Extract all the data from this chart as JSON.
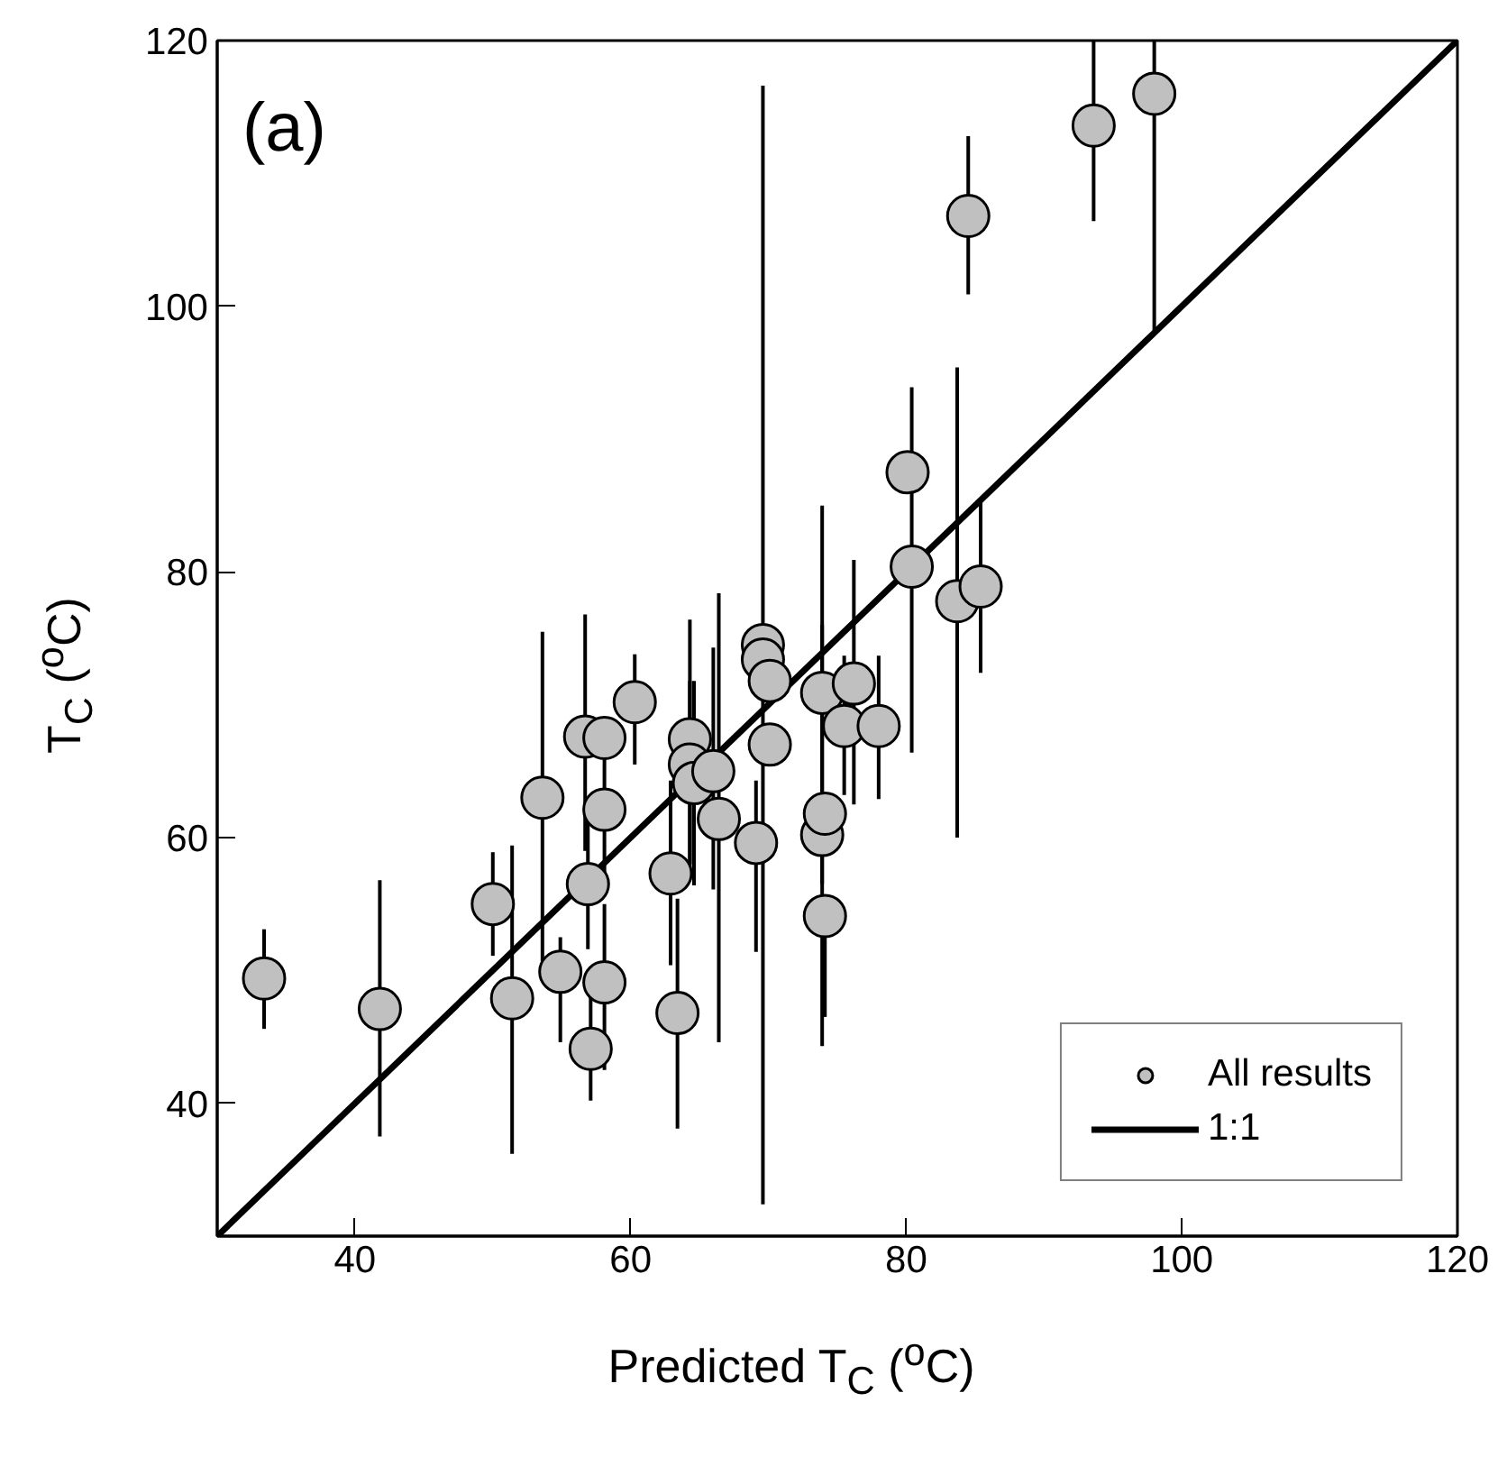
{
  "chart_data": {
    "type": "scatter",
    "xlabel": "Predicted T$_{C}$ ($^{o}$C)",
    "ylabel": "T$_{C}$ ($^{o}$C)",
    "annotations": [
      "(a)"
    ],
    "xlim": [
      30,
      120
    ],
    "ylim": [
      30,
      120
    ],
    "xticks": [
      40,
      60,
      80,
      100,
      120
    ],
    "yticks": [
      40,
      60,
      80,
      100,
      120
    ],
    "grid": false,
    "legend": "bottom right",
    "series": [
      {
        "name": "All results",
        "marker": "circle",
        "color": "#c0c0c0",
        "x": [
          33.4,
          41.8,
          50.0,
          51.4,
          53.6,
          54.9,
          56.9,
          56.7,
          57.1,
          58.1,
          58.1,
          58.1,
          60.3,
          62.9,
          63.4,
          64.3,
          64.3,
          64.6,
          66.0,
          66.4,
          69.1,
          69.6,
          69.6,
          70.1,
          70.1,
          73.9,
          73.9,
          74.1,
          74.1,
          75.5,
          76.2,
          78.0,
          80.1,
          80.4,
          83.7,
          85.4,
          84.5,
          93.6,
          98.0
        ],
        "values": [
          49.4,
          47.1,
          55.0,
          47.9,
          63.0,
          49.9,
          56.5,
          67.6,
          44.1,
          67.5,
          62.1,
          49.1,
          70.2,
          57.3,
          46.8,
          67.4,
          65.5,
          64.1,
          65.0,
          61.4,
          59.6,
          74.5,
          73.4,
          71.8,
          67.0,
          70.9,
          60.2,
          61.8,
          54.1,
          68.4,
          71.6,
          68.4,
          87.5,
          80.4,
          77.8,
          78.9,
          106.8,
          113.6,
          116.0
        ],
        "errors": [
          [
            45.6,
            53.1
          ],
          [
            37.5,
            56.8
          ],
          [
            51.1,
            58.9
          ],
          [
            36.2,
            59.4
          ],
          [
            50.7,
            75.5
          ],
          [
            44.6,
            52.5
          ],
          [
            51.6,
            61.6
          ],
          [
            59.0,
            76.8
          ],
          [
            40.2,
            48.1
          ],
          null,
          [
            57.0,
            66.0
          ],
          [
            42.5,
            55.0
          ],
          [
            65.5,
            73.8
          ],
          [
            50.4,
            64.3
          ],
          [
            38.1,
            55.4
          ],
          [
            56.8,
            76.4
          ],
          [
            58.0,
            71.8
          ],
          [
            56.4,
            71.8
          ],
          [
            56.1,
            74.3
          ],
          [
            44.6,
            78.4
          ],
          [
            51.4,
            64.3
          ],
          [
            32.4,
            116.6
          ],
          null,
          null,
          null,
          [
            44.3,
            85.0
          ],
          [
            56.5,
            76.0
          ],
          null,
          [
            46.5,
            54.1
          ],
          [
            63.2,
            73.7
          ],
          [
            62.5,
            80.9
          ],
          [
            62.9,
            73.7
          ],
          null,
          [
            66.4,
            93.9
          ],
          [
            60.0,
            95.4
          ],
          [
            72.4,
            85.4
          ],
          [
            100.9,
            112.8
          ],
          [
            106.4,
            120.0
          ],
          [
            98.2,
            120.0
          ]
        ]
      },
      {
        "name": "1:1",
        "type": "line",
        "color": "#000000",
        "line_style": "solid",
        "x": [
          30,
          120
        ],
        "values": [
          30,
          120
        ]
      }
    ]
  }
}
